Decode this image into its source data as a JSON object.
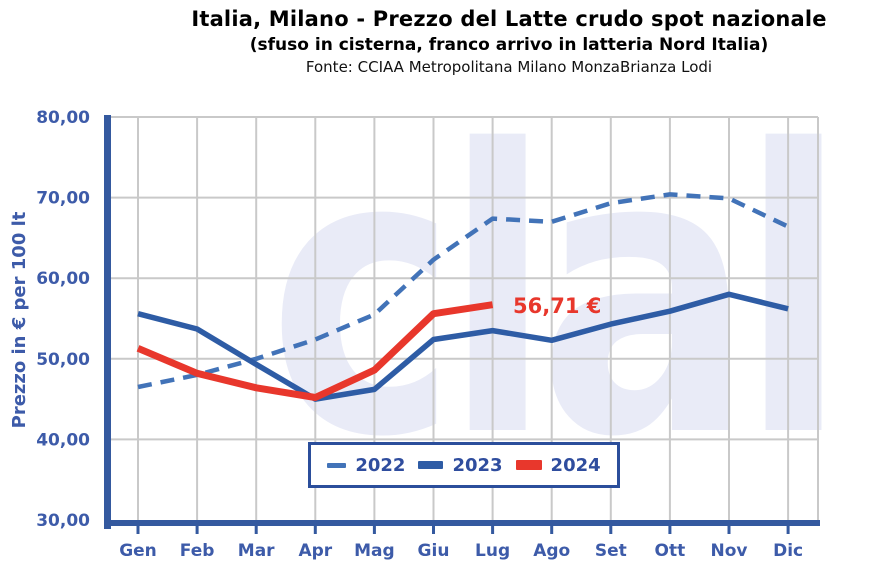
{
  "header": {
    "title": "Italia, Milano - Prezzo del Latte crudo spot nazionale",
    "subtitle": "(sfuso in cisterna, franco arrivo in latteria Nord Italia)",
    "source": "Fonte: CCIAA Metropolitana Milano MonzaBrianza Lodi"
  },
  "watermark_text": "clal",
  "annotation": {
    "text": "56,71 €"
  },
  "colors": {
    "solid_blue_2023": "#2E5CA5",
    "dashed_blue_2022": "#4273B8",
    "red_2024": "#E8372C",
    "axis_spine_blue": "#34599F",
    "axis_label_blue": "#3D5BA9",
    "legend_border_blue": "#2B4E9B",
    "gridline_gray": "#C9C9C9",
    "watermark_lavender": "#E9EBF7"
  },
  "chart_data": {
    "type": "line",
    "title": "Italia, Milano - Prezzo del Latte crudo spot nazionale",
    "subtitle": "(sfuso in cisterna, franco arrivo in latteria Nord Italia)",
    "source": "Fonte: CCIAA Metropolitana Milano MonzaBrianza Lodi",
    "xlabel": "",
    "ylabel": "Prezzo in € per 100 lt",
    "ylim": [
      30,
      80
    ],
    "grid": true,
    "legend_position": "bottom-center-inside",
    "categories": [
      "Gen",
      "Feb",
      "Mar",
      "Apr",
      "Mag",
      "Giu",
      "Lug",
      "Ago",
      "Set",
      "Ott",
      "Nov",
      "Dic"
    ],
    "yticks": [
      {
        "label": "80,00",
        "value": 80
      },
      {
        "label": "70,00",
        "value": 70
      },
      {
        "label": "60,00",
        "value": 60
      },
      {
        "label": "50,00",
        "value": 50
      },
      {
        "label": "40,00",
        "value": 40
      },
      {
        "label": "30,00",
        "value": 30
      }
    ],
    "ygrid_values": [
      80,
      70,
      60,
      50,
      40
    ],
    "series": [
      {
        "name": "2022",
        "style": "dashed",
        "color": "#4273B8",
        "values": [
          46.5,
          48.0,
          50.0,
          52.4,
          55.5,
          62.3,
          67.4,
          67.0,
          69.3,
          70.4,
          69.9,
          66.4
        ]
      },
      {
        "name": "2023",
        "style": "solid",
        "color": "#2E5CA5",
        "values": [
          55.6,
          53.7,
          49.3,
          45.0,
          46.2,
          52.4,
          53.5,
          52.3,
          54.3,
          55.9,
          58.0,
          56.2
        ]
      },
      {
        "name": "2024",
        "style": "solid-thick",
        "color": "#E8372C",
        "values": [
          51.3,
          48.2,
          46.4,
          45.2,
          48.6,
          55.6,
          56.71,
          null,
          null,
          null,
          null,
          null
        ]
      }
    ],
    "annotation": {
      "text": "56,71 €",
      "series": "2024",
      "month": "Lug",
      "value": 56.71
    }
  }
}
